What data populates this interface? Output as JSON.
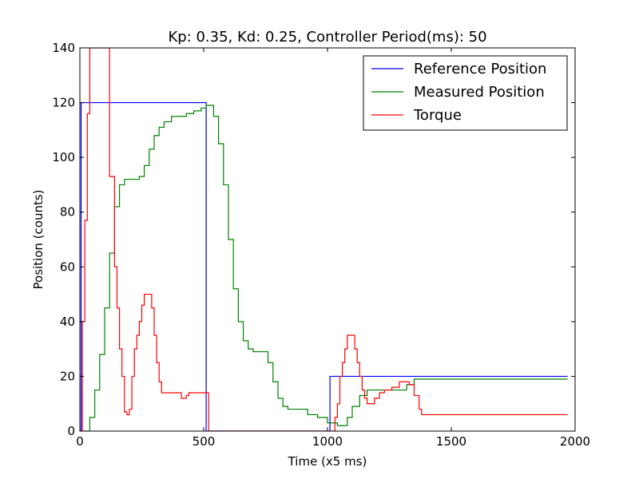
{
  "chart_data": {
    "type": "line",
    "title": "Kp: 0.35, Kd: 0.25, Controller Period(ms): 50",
    "xlabel": "Time (x5 ms)",
    "ylabel": "Position (counts)",
    "xlim": [
      0,
      2000
    ],
    "ylim": [
      0,
      140
    ],
    "xticks": [
      0,
      500,
      1000,
      1500,
      2000
    ],
    "yticks": [
      0,
      20,
      40,
      60,
      80,
      100,
      120,
      140
    ],
    "grid": false,
    "legend": "top-right",
    "series": [
      {
        "name": "Reference Position",
        "color": "#0000ff",
        "step": true,
        "points": [
          [
            0,
            0
          ],
          [
            5,
            0
          ],
          [
            5,
            120
          ],
          [
            510,
            120
          ],
          [
            510,
            0
          ],
          [
            1010,
            0
          ],
          [
            1010,
            20
          ],
          [
            1970,
            20
          ]
        ]
      },
      {
        "name": "Measured Position",
        "color": "#008000",
        "step": true,
        "points": [
          [
            0,
            0
          ],
          [
            20,
            0
          ],
          [
            40,
            5
          ],
          [
            60,
            15
          ],
          [
            80,
            28
          ],
          [
            100,
            45
          ],
          [
            120,
            65
          ],
          [
            140,
            82
          ],
          [
            160,
            90
          ],
          [
            180,
            92
          ],
          [
            200,
            92
          ],
          [
            240,
            93
          ],
          [
            260,
            97
          ],
          [
            280,
            103
          ],
          [
            300,
            108
          ],
          [
            320,
            111
          ],
          [
            340,
            113
          ],
          [
            370,
            115
          ],
          [
            400,
            115
          ],
          [
            430,
            116
          ],
          [
            460,
            117
          ],
          [
            490,
            118
          ],
          [
            510,
            119
          ],
          [
            525,
            119
          ],
          [
            540,
            115
          ],
          [
            560,
            105
          ],
          [
            580,
            90
          ],
          [
            600,
            70
          ],
          [
            620,
            52
          ],
          [
            640,
            40
          ],
          [
            660,
            33
          ],
          [
            680,
            30
          ],
          [
            700,
            29
          ],
          [
            730,
            29
          ],
          [
            760,
            25
          ],
          [
            780,
            18
          ],
          [
            800,
            12
          ],
          [
            820,
            9
          ],
          [
            840,
            8
          ],
          [
            880,
            8
          ],
          [
            920,
            6
          ],
          [
            960,
            5
          ],
          [
            1000,
            3
          ],
          [
            1040,
            2
          ],
          [
            1060,
            2
          ],
          [
            1080,
            5
          ],
          [
            1100,
            9
          ],
          [
            1130,
            13
          ],
          [
            1160,
            15
          ],
          [
            1220,
            15
          ],
          [
            1280,
            15
          ],
          [
            1320,
            17
          ],
          [
            1350,
            19
          ],
          [
            1970,
            19
          ]
        ]
      },
      {
        "name": "Torque",
        "color": "#ff0000",
        "step": true,
        "points": [
          [
            0,
            0
          ],
          [
            10,
            0
          ],
          [
            10,
            40
          ],
          [
            20,
            77
          ],
          [
            30,
            116
          ],
          [
            40,
            140
          ],
          [
            110,
            140
          ],
          [
            110,
            140
          ],
          [
            120,
            93
          ],
          [
            140,
            60
          ],
          [
            150,
            45
          ],
          [
            160,
            30
          ],
          [
            170,
            20
          ],
          [
            180,
            7
          ],
          [
            190,
            6
          ],
          [
            200,
            8
          ],
          [
            210,
            20
          ],
          [
            220,
            30
          ],
          [
            230,
            35
          ],
          [
            240,
            40
          ],
          [
            250,
            46
          ],
          [
            260,
            50
          ],
          [
            280,
            50
          ],
          [
            290,
            45
          ],
          [
            300,
            35
          ],
          [
            310,
            25
          ],
          [
            320,
            18
          ],
          [
            330,
            14
          ],
          [
            360,
            14
          ],
          [
            390,
            14
          ],
          [
            410,
            12
          ],
          [
            420,
            12
          ],
          [
            430,
            13
          ],
          [
            440,
            14
          ],
          [
            510,
            14
          ],
          [
            520,
            0
          ],
          [
            1010,
            0
          ],
          [
            1030,
            5
          ],
          [
            1040,
            10
          ],
          [
            1050,
            20
          ],
          [
            1060,
            25
          ],
          [
            1070,
            30
          ],
          [
            1080,
            35
          ],
          [
            1100,
            35
          ],
          [
            1110,
            30
          ],
          [
            1120,
            25
          ],
          [
            1130,
            20
          ],
          [
            1140,
            15
          ],
          [
            1150,
            12
          ],
          [
            1160,
            10
          ],
          [
            1180,
            10
          ],
          [
            1190,
            12
          ],
          [
            1210,
            14
          ],
          [
            1230,
            15
          ],
          [
            1260,
            16
          ],
          [
            1290,
            18
          ],
          [
            1310,
            18
          ],
          [
            1330,
            17
          ],
          [
            1350,
            13
          ],
          [
            1370,
            8
          ],
          [
            1380,
            6
          ],
          [
            1970,
            6
          ]
        ]
      }
    ]
  }
}
